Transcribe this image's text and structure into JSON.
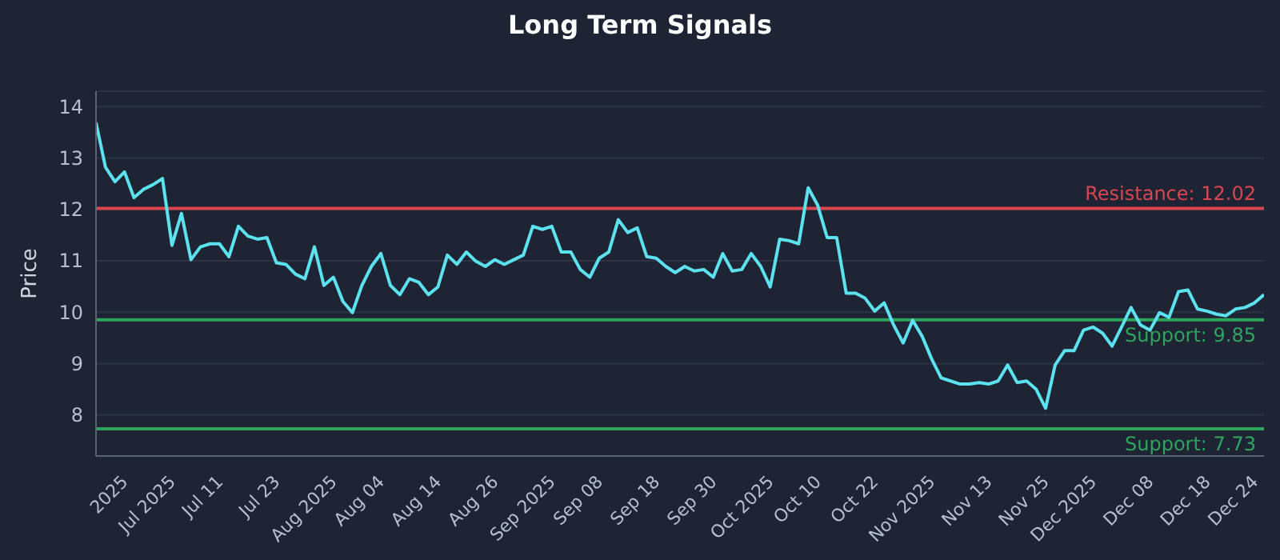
{
  "chart_data": {
    "type": "line",
    "title": "Long Term Signals",
    "ylabel": "Price",
    "categories": [
      null,
      null,
      null,
      "2025",
      null,
      null,
      null,
      null,
      "Jul 2025",
      null,
      null,
      null,
      null,
      "Jul 11",
      null,
      null,
      null,
      null,
      null,
      "Jul 23",
      null,
      null,
      null,
      null,
      null,
      "Aug 2025",
      null,
      null,
      null,
      null,
      "Aug 04",
      null,
      null,
      null,
      null,
      null,
      "Aug 14",
      null,
      null,
      null,
      null,
      null,
      "Aug 26",
      null,
      null,
      null,
      null,
      null,
      "Sep 2025",
      null,
      null,
      null,
      null,
      "Sep 08",
      null,
      null,
      null,
      null,
      null,
      "Sep 18",
      null,
      null,
      null,
      null,
      null,
      "Sep 30",
      null,
      null,
      null,
      null,
      null,
      "Oct 2025",
      null,
      null,
      null,
      null,
      "Oct 10",
      null,
      null,
      null,
      null,
      null,
      "Oct 22",
      null,
      null,
      null,
      null,
      null,
      "Nov 2025",
      null,
      null,
      null,
      null,
      null,
      "Nov 13",
      null,
      null,
      null,
      null,
      null,
      "Nov 25",
      null,
      null,
      null,
      null,
      "Dec 2025",
      null,
      null,
      null,
      null,
      null,
      "Dec 08",
      null,
      null,
      null,
      null,
      null,
      "Dec 18",
      null,
      null,
      null,
      null,
      "Dec 24",
      null
    ],
    "series": [
      {
        "color": "#5ce1ee",
        "values": [
          13.69,
          12.82,
          12.54,
          12.73,
          12.23,
          12.39,
          12.48,
          12.6,
          11.3,
          11.92,
          11.02,
          11.27,
          11.33,
          11.33,
          11.08,
          11.67,
          11.48,
          11.42,
          11.45,
          10.96,
          10.93,
          10.74,
          10.65,
          11.27,
          10.52,
          10.68,
          10.21,
          9.99,
          10.52,
          10.89,
          11.14,
          10.52,
          10.34,
          10.65,
          10.58,
          10.34,
          10.49,
          11.11,
          10.93,
          11.17,
          10.99,
          10.89,
          11.02,
          10.93,
          11.02,
          11.11,
          11.67,
          11.61,
          11.67,
          11.17,
          11.17,
          10.83,
          10.68,
          11.05,
          11.17,
          11.8,
          11.55,
          11.64,
          11.08,
          11.05,
          10.89,
          10.77,
          10.89,
          10.8,
          10.83,
          10.68,
          11.14,
          10.8,
          10.83,
          11.14,
          10.89,
          10.49,
          11.42,
          11.39,
          11.33,
          12.42,
          12.08,
          11.45,
          11.45,
          10.37,
          10.37,
          10.27,
          10.02,
          10.18,
          9.75,
          9.4,
          9.84,
          9.53,
          9.09,
          8.72,
          8.66,
          8.6,
          8.6,
          8.63,
          8.6,
          8.66,
          8.97,
          8.63,
          8.66,
          8.5,
          8.13,
          8.97,
          9.25,
          9.25,
          9.65,
          9.71,
          9.59,
          9.34,
          9.71,
          10.09,
          9.75,
          9.65,
          9.99,
          9.9,
          10.4,
          10.43,
          10.06,
          10.02,
          9.96,
          9.93,
          10.06,
          10.09,
          10.18,
          10.34
        ]
      }
    ],
    "ylim": [
      7.2,
      14.3
    ],
    "yticks": [
      8,
      9,
      10,
      11,
      12,
      13,
      14
    ],
    "grid": "y",
    "marker": "none",
    "line_style": "solid",
    "ref_lines": [
      {
        "axis": "y",
        "value": 12.02,
        "label": "Resistance: 12.02",
        "color": "#d9464f"
      },
      {
        "axis": "y",
        "value": 9.85,
        "label": "Support: 9.85",
        "color": "#2ea55e"
      },
      {
        "axis": "y",
        "value": 7.73,
        "label": "Support: 7.73",
        "color": "#2ea55e"
      }
    ]
  }
}
